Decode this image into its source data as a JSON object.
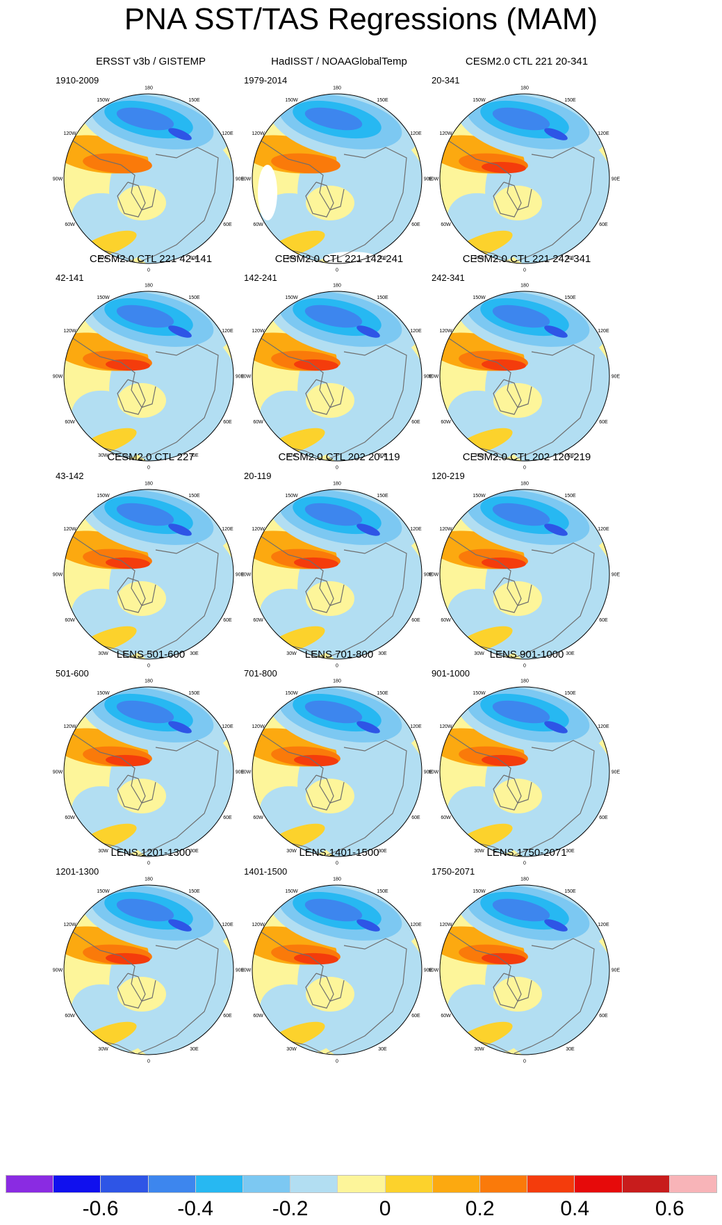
{
  "title": "PNA SST/TAS Regressions (MAM)",
  "panels": [
    {
      "title": "ERSST v3b / GISTEMP",
      "period": "1910-2009"
    },
    {
      "title": "HadISST / NOAAGlobalTemp",
      "period": "1979-2014"
    },
    {
      "title": "CESM2.0 CTL 221 20-341",
      "period": "20-341"
    },
    {
      "title": "CESM2.0 CTL 221 42-141",
      "period": "42-141"
    },
    {
      "title": "CESM2.0 CTL 221 142-241",
      "period": "142-241"
    },
    {
      "title": "CESM2.0 CTL 221 242-341",
      "period": "242-341"
    },
    {
      "title": "CESM2.0 CTL 227",
      "period": "43-142"
    },
    {
      "title": "CESM2.0 CTL 202 20-119",
      "period": "20-119"
    },
    {
      "title": "CESM2.0 CTL 202 120-219",
      "period": "120-219"
    },
    {
      "title": "LENS 501-600",
      "period": "501-600"
    },
    {
      "title": "LENS 701-800",
      "period": "701-800"
    },
    {
      "title": "LENS 901-1000",
      "period": "901-1000"
    },
    {
      "title": "LENS 1201-1300",
      "period": "1201-1300"
    },
    {
      "title": "LENS 1401-1500",
      "period": "1401-1500"
    },
    {
      "title": "LENS 1750-2071",
      "period": "1750-2071"
    }
  ],
  "longitude_labels": [
    "180",
    "150E",
    "120E",
    "90E",
    "60E",
    "30E",
    "0",
    "30W",
    "60W",
    "90W",
    "120W",
    "150W"
  ],
  "colorbar": {
    "colors": [
      "#8a2be2",
      "#1010ee",
      "#2e55e6",
      "#3d86ee",
      "#27b8f2",
      "#7cc8f2",
      "#b2def2",
      "#fdf59a",
      "#fcd22c",
      "#fca910",
      "#fa7a0a",
      "#f43c0c",
      "#e60a0a",
      "#c81c1c",
      "#f8b4b8"
    ],
    "tick_labels": [
      "-0.6",
      "-0.4",
      "-0.2",
      "0",
      "0.2",
      "0.4",
      "0.6"
    ]
  },
  "map_colors": {
    "coast": "#6e6e6e",
    "missing": "#ffffff"
  }
}
